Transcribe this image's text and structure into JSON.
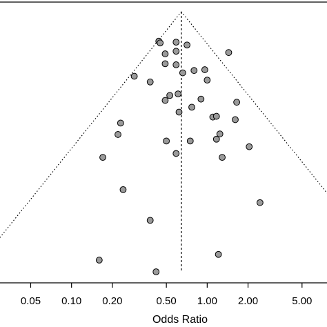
{
  "chart_data": {
    "type": "scatter",
    "title": "",
    "xlabel": "Odds Ratio",
    "ylabel": "",
    "x_scale": "log",
    "xlim": [
      0.0297,
      7.64
    ],
    "x_ticks": [
      0.05,
      0.1,
      0.2,
      0.5,
      1.0,
      2.0,
      5.0
    ],
    "x_tick_labels": [
      "0.05",
      "0.10",
      "0.20",
      "0.50",
      "1.00",
      "2.00",
      "5.00"
    ],
    "ylim": [
      0,
      1
    ],
    "pooled_estimate": 0.645,
    "grid": false,
    "legend": "none",
    "colors": {
      "point_fill": "#9a9a9a",
      "point_edge": "#000000",
      "lines": "#000000"
    },
    "series": [
      {
        "values": [
          {
            "x": 0.44,
            "y": 0.887
          },
          {
            "x": 0.45,
            "y": 0.88
          },
          {
            "x": 0.59,
            "y": 0.883
          },
          {
            "x": 0.71,
            "y": 0.872
          },
          {
            "x": 0.59,
            "y": 0.848
          },
          {
            "x": 0.49,
            "y": 0.838
          },
          {
            "x": 1.44,
            "y": 0.843
          },
          {
            "x": 0.49,
            "y": 0.8
          },
          {
            "x": 0.59,
            "y": 0.796
          },
          {
            "x": 0.8,
            "y": 0.774
          },
          {
            "x": 0.96,
            "y": 0.777
          },
          {
            "x": 0.66,
            "y": 0.765
          },
          {
            "x": 0.29,
            "y": 0.752
          },
          {
            "x": 0.38,
            "y": 0.73
          },
          {
            "x": 1.0,
            "y": 0.737
          },
          {
            "x": 0.61,
            "y": 0.684
          },
          {
            "x": 0.53,
            "y": 0.678
          },
          {
            "x": 0.9,
            "y": 0.664
          },
          {
            "x": 0.49,
            "y": 0.659
          },
          {
            "x": 1.65,
            "y": 0.652
          },
          {
            "x": 0.77,
            "y": 0.633
          },
          {
            "x": 0.62,
            "y": 0.614
          },
          {
            "x": 1.1,
            "y": 0.595
          },
          {
            "x": 1.17,
            "y": 0.598
          },
          {
            "x": 1.61,
            "y": 0.585
          },
          {
            "x": 0.23,
            "y": 0.572
          },
          {
            "x": 0.22,
            "y": 0.528
          },
          {
            "x": 1.24,
            "y": 0.53
          },
          {
            "x": 1.17,
            "y": 0.51
          },
          {
            "x": 0.5,
            "y": 0.503
          },
          {
            "x": 0.75,
            "y": 0.503
          },
          {
            "x": 2.04,
            "y": 0.481
          },
          {
            "x": 0.59,
            "y": 0.455
          },
          {
            "x": 1.29,
            "y": 0.44
          },
          {
            "x": 0.17,
            "y": 0.44
          },
          {
            "x": 0.24,
            "y": 0.316
          },
          {
            "x": 2.45,
            "y": 0.266
          },
          {
            "x": 0.38,
            "y": 0.198
          },
          {
            "x": 1.21,
            "y": 0.067
          },
          {
            "x": 0.16,
            "y": 0.045
          },
          {
            "x": 0.42,
            "y": 0.0
          }
        ]
      }
    ]
  }
}
